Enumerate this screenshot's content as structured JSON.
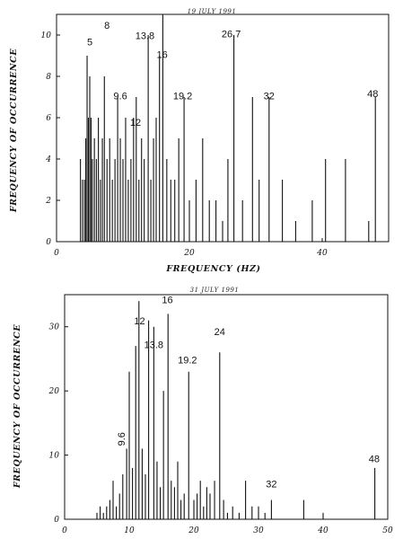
{
  "chart_data": [
    {
      "type": "bar",
      "title": "19 JULY 1991",
      "xlabel": "FREQUENCY (HZ)",
      "ylabel": "FREQUENCY OF OCCURRENCE",
      "xlim": [
        0,
        50
      ],
      "ylim": [
        0,
        11
      ],
      "xticks": [
        "0",
        "20",
        "40"
      ],
      "yticks": [
        "0",
        "2",
        "4",
        "6",
        "8",
        "10"
      ],
      "x": [
        3.6,
        3.9,
        4.2,
        4.4,
        4.6,
        4.8,
        5.0,
        5.2,
        5.4,
        5.7,
        6.0,
        6.3,
        6.6,
        6.9,
        7.2,
        7.6,
        8.0,
        8.4,
        8.8,
        9.2,
        9.6,
        10.0,
        10.4,
        10.8,
        11.2,
        11.6,
        12.0,
        12.4,
        12.8,
        13.2,
        13.8,
        14.2,
        14.6,
        15.0,
        15.5,
        16.0,
        16.6,
        17.2,
        17.8,
        18.4,
        19.2,
        20.0,
        21.0,
        22.0,
        23.0,
        24.0,
        25.0,
        25.8,
        26.7,
        28.0,
        29.5,
        30.5,
        32.0,
        34.0,
        36.0,
        38.5,
        40.5,
        43.5,
        47.0,
        48.0
      ],
      "values": [
        4,
        3,
        3,
        5,
        9,
        6,
        8,
        6,
        4,
        5,
        4,
        6,
        3,
        5,
        8,
        4,
        5,
        3,
        4,
        7,
        5,
        4,
        6,
        3,
        4,
        6,
        7,
        3,
        5,
        4,
        10,
        3,
        5,
        6,
        9,
        11,
        4,
        3,
        3,
        5,
        7,
        2,
        3,
        5,
        2,
        2,
        1,
        4,
        10,
        2,
        7,
        3,
        7,
        3,
        1,
        2,
        4,
        4,
        1,
        7
      ],
      "annotations": [
        {
          "label": "5",
          "x": 5.0,
          "y": 9.5
        },
        {
          "label": "8",
          "x": 7.6,
          "y": 10.3
        },
        {
          "label": "9.6",
          "x": 9.6,
          "y": 6.9
        },
        {
          "label": "12",
          "x": 11.9,
          "y": 5.6
        },
        {
          "label": "13.8",
          "x": 13.3,
          "y": 9.8
        },
        {
          "label": "16",
          "x": 15.9,
          "y": 8.9
        },
        {
          "label": "19.2",
          "x": 19.0,
          "y": 6.9
        },
        {
          "label": "26.7",
          "x": 26.3,
          "y": 9.9
        },
        {
          "label": "32",
          "x": 32.0,
          "y": 6.9
        },
        {
          "label": "48",
          "x": 47.6,
          "y": 7.0
        }
      ]
    },
    {
      "type": "bar",
      "title": "31 JULY 1991",
      "xlabel": "",
      "ylabel": "FREQUENCY OF OCCURRENCE",
      "xlim": [
        0,
        50
      ],
      "ylim": [
        0,
        35
      ],
      "xticks": [
        "0",
        "10",
        "20",
        "30",
        "40",
        "50"
      ],
      "yticks": [
        "0",
        "10",
        "20",
        "30"
      ],
      "x": [
        5.0,
        5.5,
        6.0,
        6.5,
        7.0,
        7.5,
        8.0,
        8.5,
        9.0,
        9.6,
        10.0,
        10.5,
        11.0,
        11.5,
        12.0,
        12.5,
        13.0,
        13.8,
        14.3,
        14.8,
        15.3,
        16.0,
        16.5,
        17.0,
        17.5,
        18.0,
        18.5,
        19.2,
        20.0,
        20.5,
        21.0,
        21.5,
        22.0,
        22.5,
        23.2,
        24.0,
        24.6,
        25.2,
        26.0,
        27.0,
        28.0,
        29.0,
        30.0,
        31.0,
        32.0,
        37.0,
        40.0,
        48.0
      ],
      "values": [
        1,
        2,
        1,
        2,
        3,
        6,
        2,
        4,
        7,
        11,
        23,
        8,
        27,
        34,
        11,
        7,
        31,
        30,
        9,
        5,
        20,
        32,
        6,
        5,
        9,
        3,
        4,
        23,
        3,
        4,
        6,
        2,
        5,
        4,
        6,
        26,
        3,
        1,
        2,
        1,
        6,
        2,
        2,
        1,
        3,
        3,
        1,
        8
      ],
      "annotations": [
        {
          "label": "9.6",
          "x": 9.6,
          "y": 12.5
        },
        {
          "label": "12",
          "x": 11.6,
          "y": 30.4
        },
        {
          "label": "13.8",
          "x": 13.8,
          "y": 26.7
        },
        {
          "label": "16",
          "x": 15.9,
          "y": 33.7
        },
        {
          "label": "19.2",
          "x": 19.0,
          "y": 24.3
        },
        {
          "label": "24",
          "x": 24.0,
          "y": 28.7
        },
        {
          "label": "32",
          "x": 32.0,
          "y": 5.0
        },
        {
          "label": "48",
          "x": 47.9,
          "y": 8.9
        }
      ]
    }
  ]
}
